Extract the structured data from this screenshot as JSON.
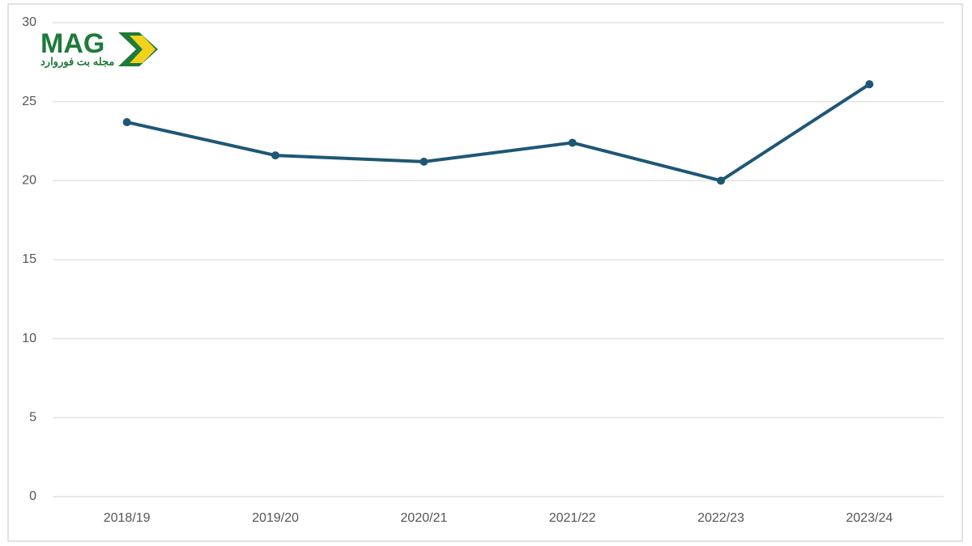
{
  "logo": {
    "text": "MAG",
    "subtitle": "مجله بت فوروارد"
  },
  "chart_data": {
    "type": "line",
    "categories": [
      "2018/19",
      "2019/20",
      "2020/21",
      "2021/22",
      "2022/23",
      "2023/24"
    ],
    "values": [
      23.7,
      21.6,
      21.2,
      22.4,
      20.0,
      26.1
    ],
    "color": "#1e5775",
    "ylim": [
      0,
      30
    ],
    "yticks": [
      0,
      5,
      10,
      15,
      20,
      25,
      30
    ],
    "grid": true
  }
}
